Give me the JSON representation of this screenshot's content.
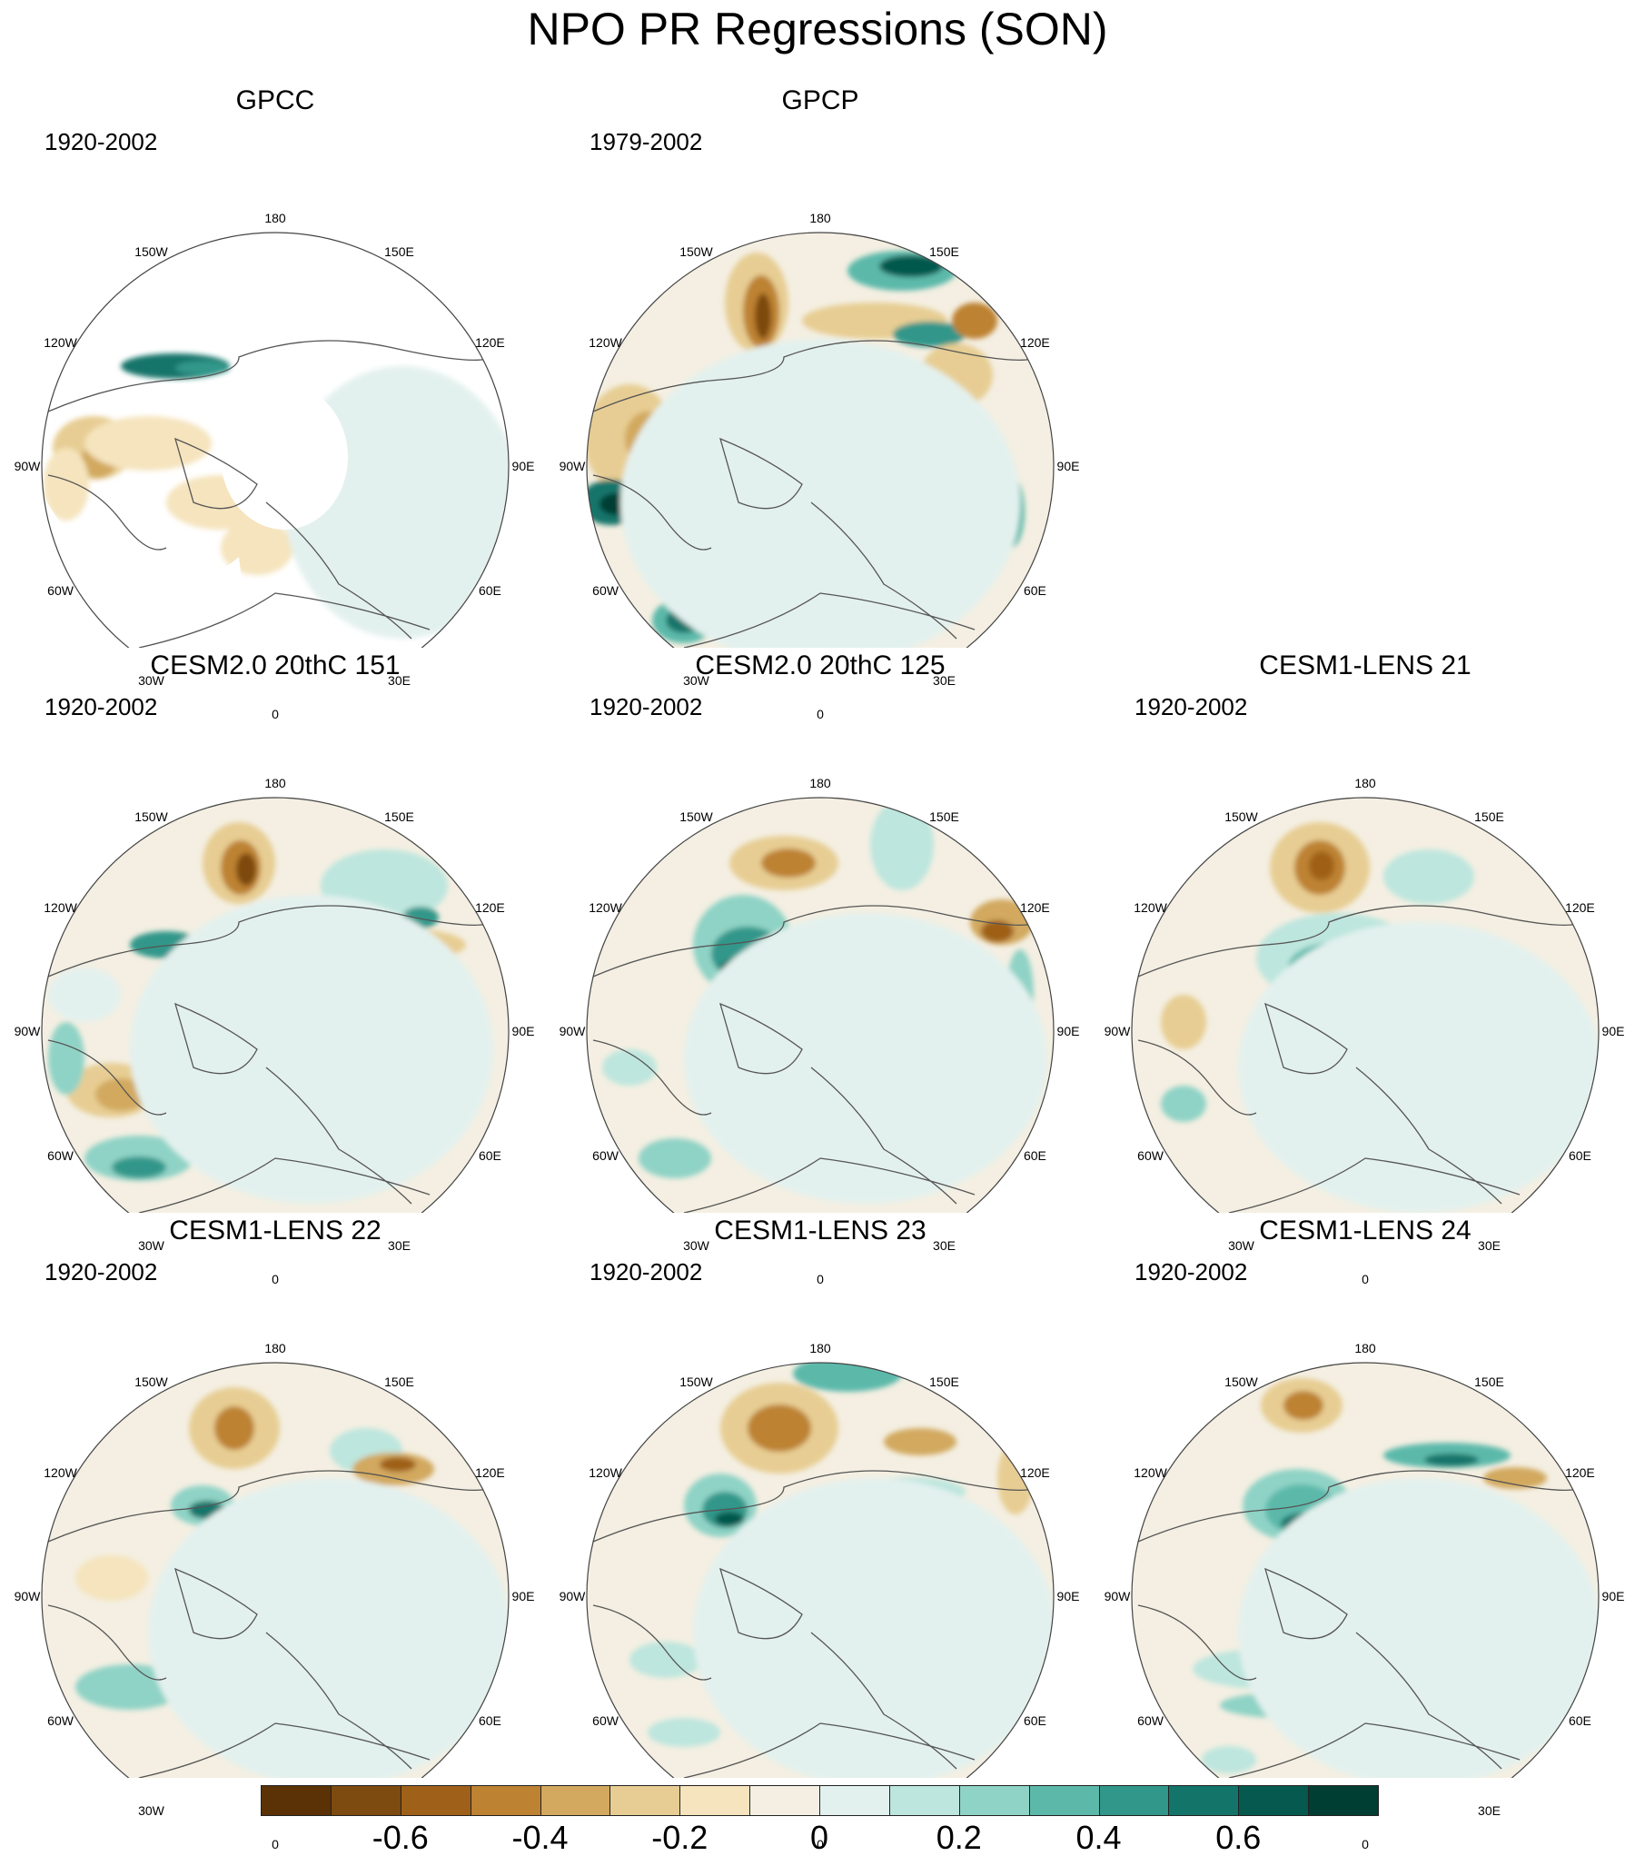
{
  "title": "NPO PR Regressions (SON)",
  "grid_labels": [
    "180",
    "150E",
    "120E",
    "90E",
    "60E",
    "30E",
    "0",
    "30W",
    "60W",
    "90W",
    "120W",
    "150W"
  ],
  "panels": [
    {
      "title": "GPCC",
      "period": "1920-2002",
      "masked": true
    },
    {
      "title": "GPCP",
      "period": "1979-2002",
      "masked": false
    },
    {
      "title": "CESM2.0 20thC 151",
      "period": "1920-2002",
      "masked": false
    },
    {
      "title": "CESM2.0 20thC 125",
      "period": "1920-2002",
      "masked": false
    },
    {
      "title": "CESM1-LENS 21",
      "period": "1920-2002",
      "masked": false
    },
    {
      "title": "CESM1-LENS 22",
      "period": "1920-2002",
      "masked": false
    },
    {
      "title": "CESM1-LENS 23",
      "period": "1920-2002",
      "masked": false
    },
    {
      "title": "CESM1-LENS 24",
      "period": "1920-2002",
      "masked": false
    }
  ],
  "colorbar": {
    "colors": [
      "#5a3206",
      "#7d4a0f",
      "#9f6119",
      "#bd8232",
      "#d2a95e",
      "#e7cd93",
      "#f5e4bd",
      "#f4efe2",
      "#e3f1ee",
      "#bde6de",
      "#8fd3c6",
      "#5cb9aa",
      "#31978a",
      "#13756a",
      "#05594e",
      "#003d33"
    ],
    "ticks": [
      "-0.6",
      "-0.4",
      "-0.2",
      "0",
      "0.2",
      "0.4",
      "0.6"
    ],
    "tick_values": [
      -0.6,
      -0.4,
      -0.2,
      0,
      0.2,
      0.4,
      0.6
    ],
    "min": -0.8,
    "max": 0.8
  }
}
